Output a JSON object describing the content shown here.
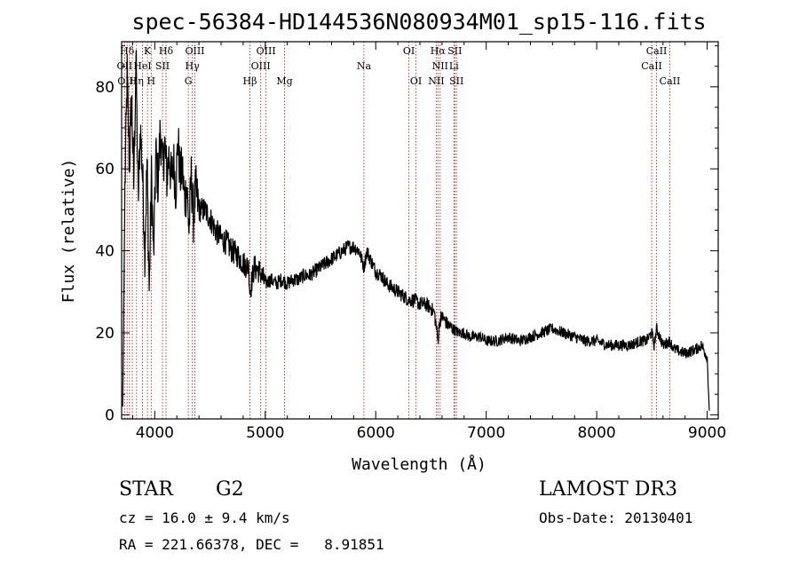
{
  "chart_data": {
    "type": "line",
    "title": "spec-56384-HD144536N080934M01_sp15-116.fits",
    "xlabel": "Wavelength (Å)",
    "ylabel": "Flux (relative)",
    "xlim": [
      3700,
      9100
    ],
    "ylim": [
      -1,
      91
    ],
    "x_ticks": [
      4000,
      5000,
      6000,
      7000,
      8000,
      9000
    ],
    "y_ticks": [
      0,
      20,
      40,
      60,
      80
    ],
    "grid": false,
    "series": [
      {
        "name": "flux",
        "x": [
          3710,
          3730,
          3750,
          3770,
          3790,
          3810,
          3830,
          3850,
          3870,
          3890,
          3910,
          3930,
          3950,
          3970,
          3990,
          4010,
          4030,
          4050,
          4070,
          4090,
          4110,
          4130,
          4150,
          4170,
          4190,
          4210,
          4230,
          4250,
          4270,
          4290,
          4310,
          4330,
          4350,
          4370,
          4400,
          4450,
          4500,
          4550,
          4600,
          4650,
          4700,
          4750,
          4800,
          4850,
          4861,
          4900,
          4950,
          5000,
          5050,
          5100,
          5150,
          5200,
          5250,
          5300,
          5350,
          5400,
          5450,
          5500,
          5550,
          5600,
          5650,
          5700,
          5750,
          5800,
          5850,
          5893,
          5920,
          5950,
          6000,
          6050,
          6100,
          6150,
          6200,
          6250,
          6300,
          6350,
          6400,
          6450,
          6500,
          6530,
          6550,
          6563,
          6580,
          6600,
          6650,
          6700,
          6750,
          6800,
          6850,
          6900,
          6950,
          7000,
          7100,
          7200,
          7300,
          7400,
          7500,
          7600,
          7700,
          7800,
          7900,
          8000,
          8100,
          8200,
          8300,
          8400,
          8450,
          8498,
          8520,
          8542,
          8600,
          8662,
          8700,
          8800,
          8900,
          8950,
          9000,
          9020
        ],
        "y": [
          2,
          55,
          83,
          60,
          78,
          56,
          88,
          52,
          70,
          58,
          40,
          62,
          30,
          58,
          38,
          64,
          56,
          70,
          60,
          66,
          58,
          64,
          57,
          62,
          55,
          67,
          58,
          60,
          52,
          56,
          45,
          58,
          48,
          55,
          50,
          50,
          48,
          45,
          43,
          42,
          40,
          39,
          37,
          36,
          30,
          36,
          35,
          32,
          33,
          32,
          33,
          32,
          33,
          33,
          34,
          34,
          35,
          36,
          37,
          38,
          39,
          40,
          41,
          41,
          40,
          36,
          40,
          38,
          35,
          34,
          32,
          31,
          30,
          29,
          28,
          28,
          27,
          27,
          26,
          25,
          21,
          18,
          23,
          24,
          22,
          21,
          20,
          20,
          19,
          19,
          19,
          18,
          18,
          19,
          18,
          19,
          20,
          21,
          20,
          19,
          18,
          18,
          17,
          17,
          17,
          18,
          18,
          20,
          17,
          21,
          17,
          18,
          16,
          15,
          16,
          17,
          14,
          1
        ]
      }
    ],
    "line_labels": [
      {
        "label": "Hδ",
        "x": 3750,
        "row": 1
      },
      {
        "label": "K",
        "x": 3934,
        "row": 1
      },
      {
        "label": "Hδ",
        "x": 4102,
        "row": 1
      },
      {
        "label": "OIII",
        "x": 4363,
        "row": 1
      },
      {
        "label": "OIII",
        "x": 5007,
        "row": 1
      },
      {
        "label": "OI",
        "x": 6300,
        "row": 1
      },
      {
        "label": "Hα",
        "x": 6563,
        "row": 1
      },
      {
        "label": "SII",
        "x": 6716,
        "row": 1
      },
      {
        "label": "CaII",
        "x": 8542,
        "row": 1
      },
      {
        "label": "OII",
        "x": 3727,
        "row": 2
      },
      {
        "label": "HeI",
        "x": 3889,
        "row": 2
      },
      {
        "label": "SII",
        "x": 4070,
        "row": 2
      },
      {
        "label": "Hγ",
        "x": 4340,
        "row": 2
      },
      {
        "label": "OIII",
        "x": 4959,
        "row": 2
      },
      {
        "label": "Na",
        "x": 5893,
        "row": 2
      },
      {
        "label": "NII",
        "x": 6583,
        "row": 2
      },
      {
        "label": "Li",
        "x": 6708,
        "row": 2
      },
      {
        "label": "CaII",
        "x": 8498,
        "row": 2
      },
      {
        "label": "OIII",
        "x": 3750,
        "row": 3
      },
      {
        "label": "Hη",
        "x": 3835,
        "row": 3
      },
      {
        "label": "H",
        "x": 3968,
        "row": 3
      },
      {
        "label": "G",
        "x": 4304,
        "row": 3
      },
      {
        "label": "Hβ",
        "x": 4861,
        "row": 3
      },
      {
        "label": "Mg",
        "x": 5175,
        "row": 3
      },
      {
        "label": "OI",
        "x": 6364,
        "row": 3
      },
      {
        "label": "NII",
        "x": 6548,
        "row": 3
      },
      {
        "label": "SII",
        "x": 6731,
        "row": 3
      },
      {
        "label": "CaII",
        "x": 8662,
        "row": 3
      }
    ],
    "marker_lines": [
      3727,
      3750,
      3771,
      3797,
      3835,
      3889,
      3934,
      3968,
      4070,
      4102,
      4304,
      4340,
      4363,
      4861,
      4959,
      5007,
      5175,
      5893,
      6300,
      6364,
      6548,
      6563,
      6583,
      6708,
      6716,
      6731,
      8498,
      8542,
      8662
    ],
    "colors": {
      "spectrum": "#000000",
      "marker_lines": "#b03030",
      "axes": "#000000"
    }
  },
  "info": {
    "object_class": "STAR",
    "subclass": "G2",
    "survey": "LAMOST DR3",
    "redshift": "cz = 16.0 ± 9.4 km/s",
    "obs_date": "Obs-Date: 20130401",
    "coords": "RA = 221.66378, DEC =   8.91851"
  }
}
